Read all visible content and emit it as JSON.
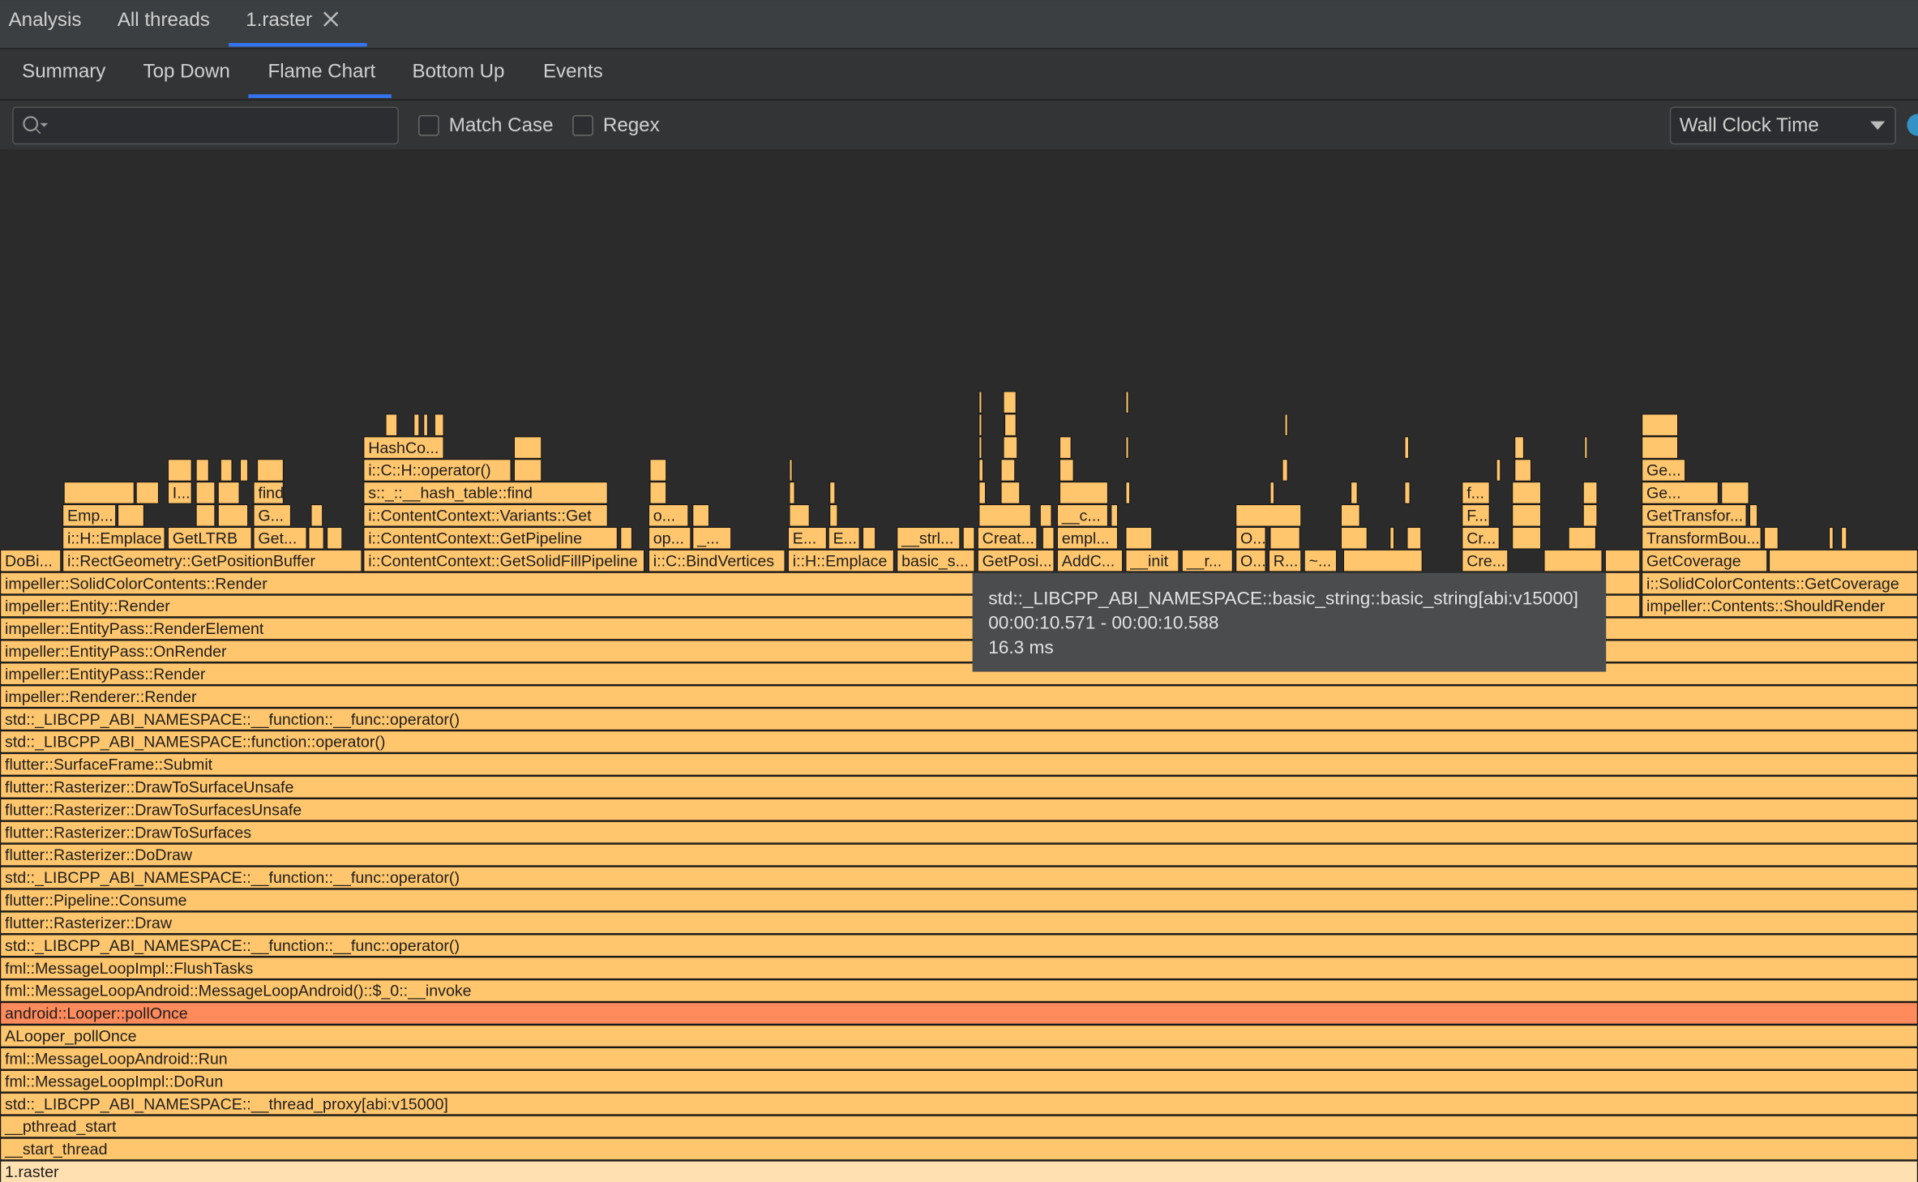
{
  "tabs": [
    "Analysis",
    "All threads",
    "1.raster"
  ],
  "subtabs": [
    "Summary",
    "Top Down",
    "Flame Chart",
    "Bottom Up",
    "Events"
  ],
  "toolbar": {
    "match_case": "Match Case",
    "regex": "Regex",
    "clock": "Wall Clock Time"
  },
  "frames": [
    "impeller::SolidColorContents::Render",
    "i::SolidColorContents::GetCoverage",
    "impeller::Entity::Render",
    "impeller::Contents::ShouldRender",
    "DoBi...",
    "i::RectGeometry::GetPositionBuffer",
    "i::ContentContext::GetSolidFillPipeline",
    "i::C::BindVertices",
    "i::H::Emplace",
    "basic_s...",
    "GetPosi...",
    "AddC...",
    "__init",
    "__r...",
    "O...",
    "R...",
    "~...",
    "Cre...",
    "GetCoverage",
    "i::H::Emplace",
    "GetLTRB",
    "Get...",
    "i::ContentContext::GetPipeline",
    "op...",
    "_...",
    "E...",
    "E...",
    "__strl...",
    "Creat...",
    "empl...",
    "O...",
    "Cr...",
    "TransformBou...",
    "Emp...",
    "G...",
    "i::ContentContext::Variants::Get",
    "o...",
    "__c...",
    "F...",
    "GetTransfor...",
    "I...",
    "find",
    "s::_::__hash_table::find",
    "f...",
    "Ge...",
    "i::C::H::operator()",
    "Ge...",
    "HashCo..."
  ],
  "stack": [
    "impeller::EntityPass::RenderElement",
    "impeller::EntityPass::OnRender",
    "impeller::EntityPass::Render",
    "impeller::Renderer::Render",
    "std::_LIBCPP_ABI_NAMESPACE::__function::__func::operator()",
    "std::_LIBCPP_ABI_NAMESPACE::function::operator()",
    "flutter::SurfaceFrame::Submit",
    "flutter::Rasterizer::DrawToSurfaceUnsafe",
    "flutter::Rasterizer::DrawToSurfacesUnsafe",
    "flutter::Rasterizer::DrawToSurfaces",
    "flutter::Rasterizer::DoDraw",
    "std::_LIBCPP_ABI_NAMESPACE::__function::__func::operator()",
    "flutter::Pipeline::Consume",
    "flutter::Rasterizer::Draw",
    "std::_LIBCPP_ABI_NAMESPACE::__function::__func::operator()",
    "fml::MessageLoopImpl::FlushTasks",
    "fml::MessageLoopAndroid::MessageLoopAndroid()::$_0::__invoke",
    "android::Looper::pollOnce",
    "ALooper_pollOnce",
    "fml::MessageLoopAndroid::Run",
    "fml::MessageLoopImpl::DoRun",
    "std::_LIBCPP_ABI_NAMESPACE::__thread_proxy[abi:v15000]",
    "__pthread_start",
    "__start_thread",
    "1.raster"
  ],
  "tooltip": [
    "std::_LIBCPP_ABI_NAMESPACE::basic_string::basic_string[abi:v15000]",
    "00:00:10.571 - 00:00:10.588",
    "16.3 ms"
  ]
}
